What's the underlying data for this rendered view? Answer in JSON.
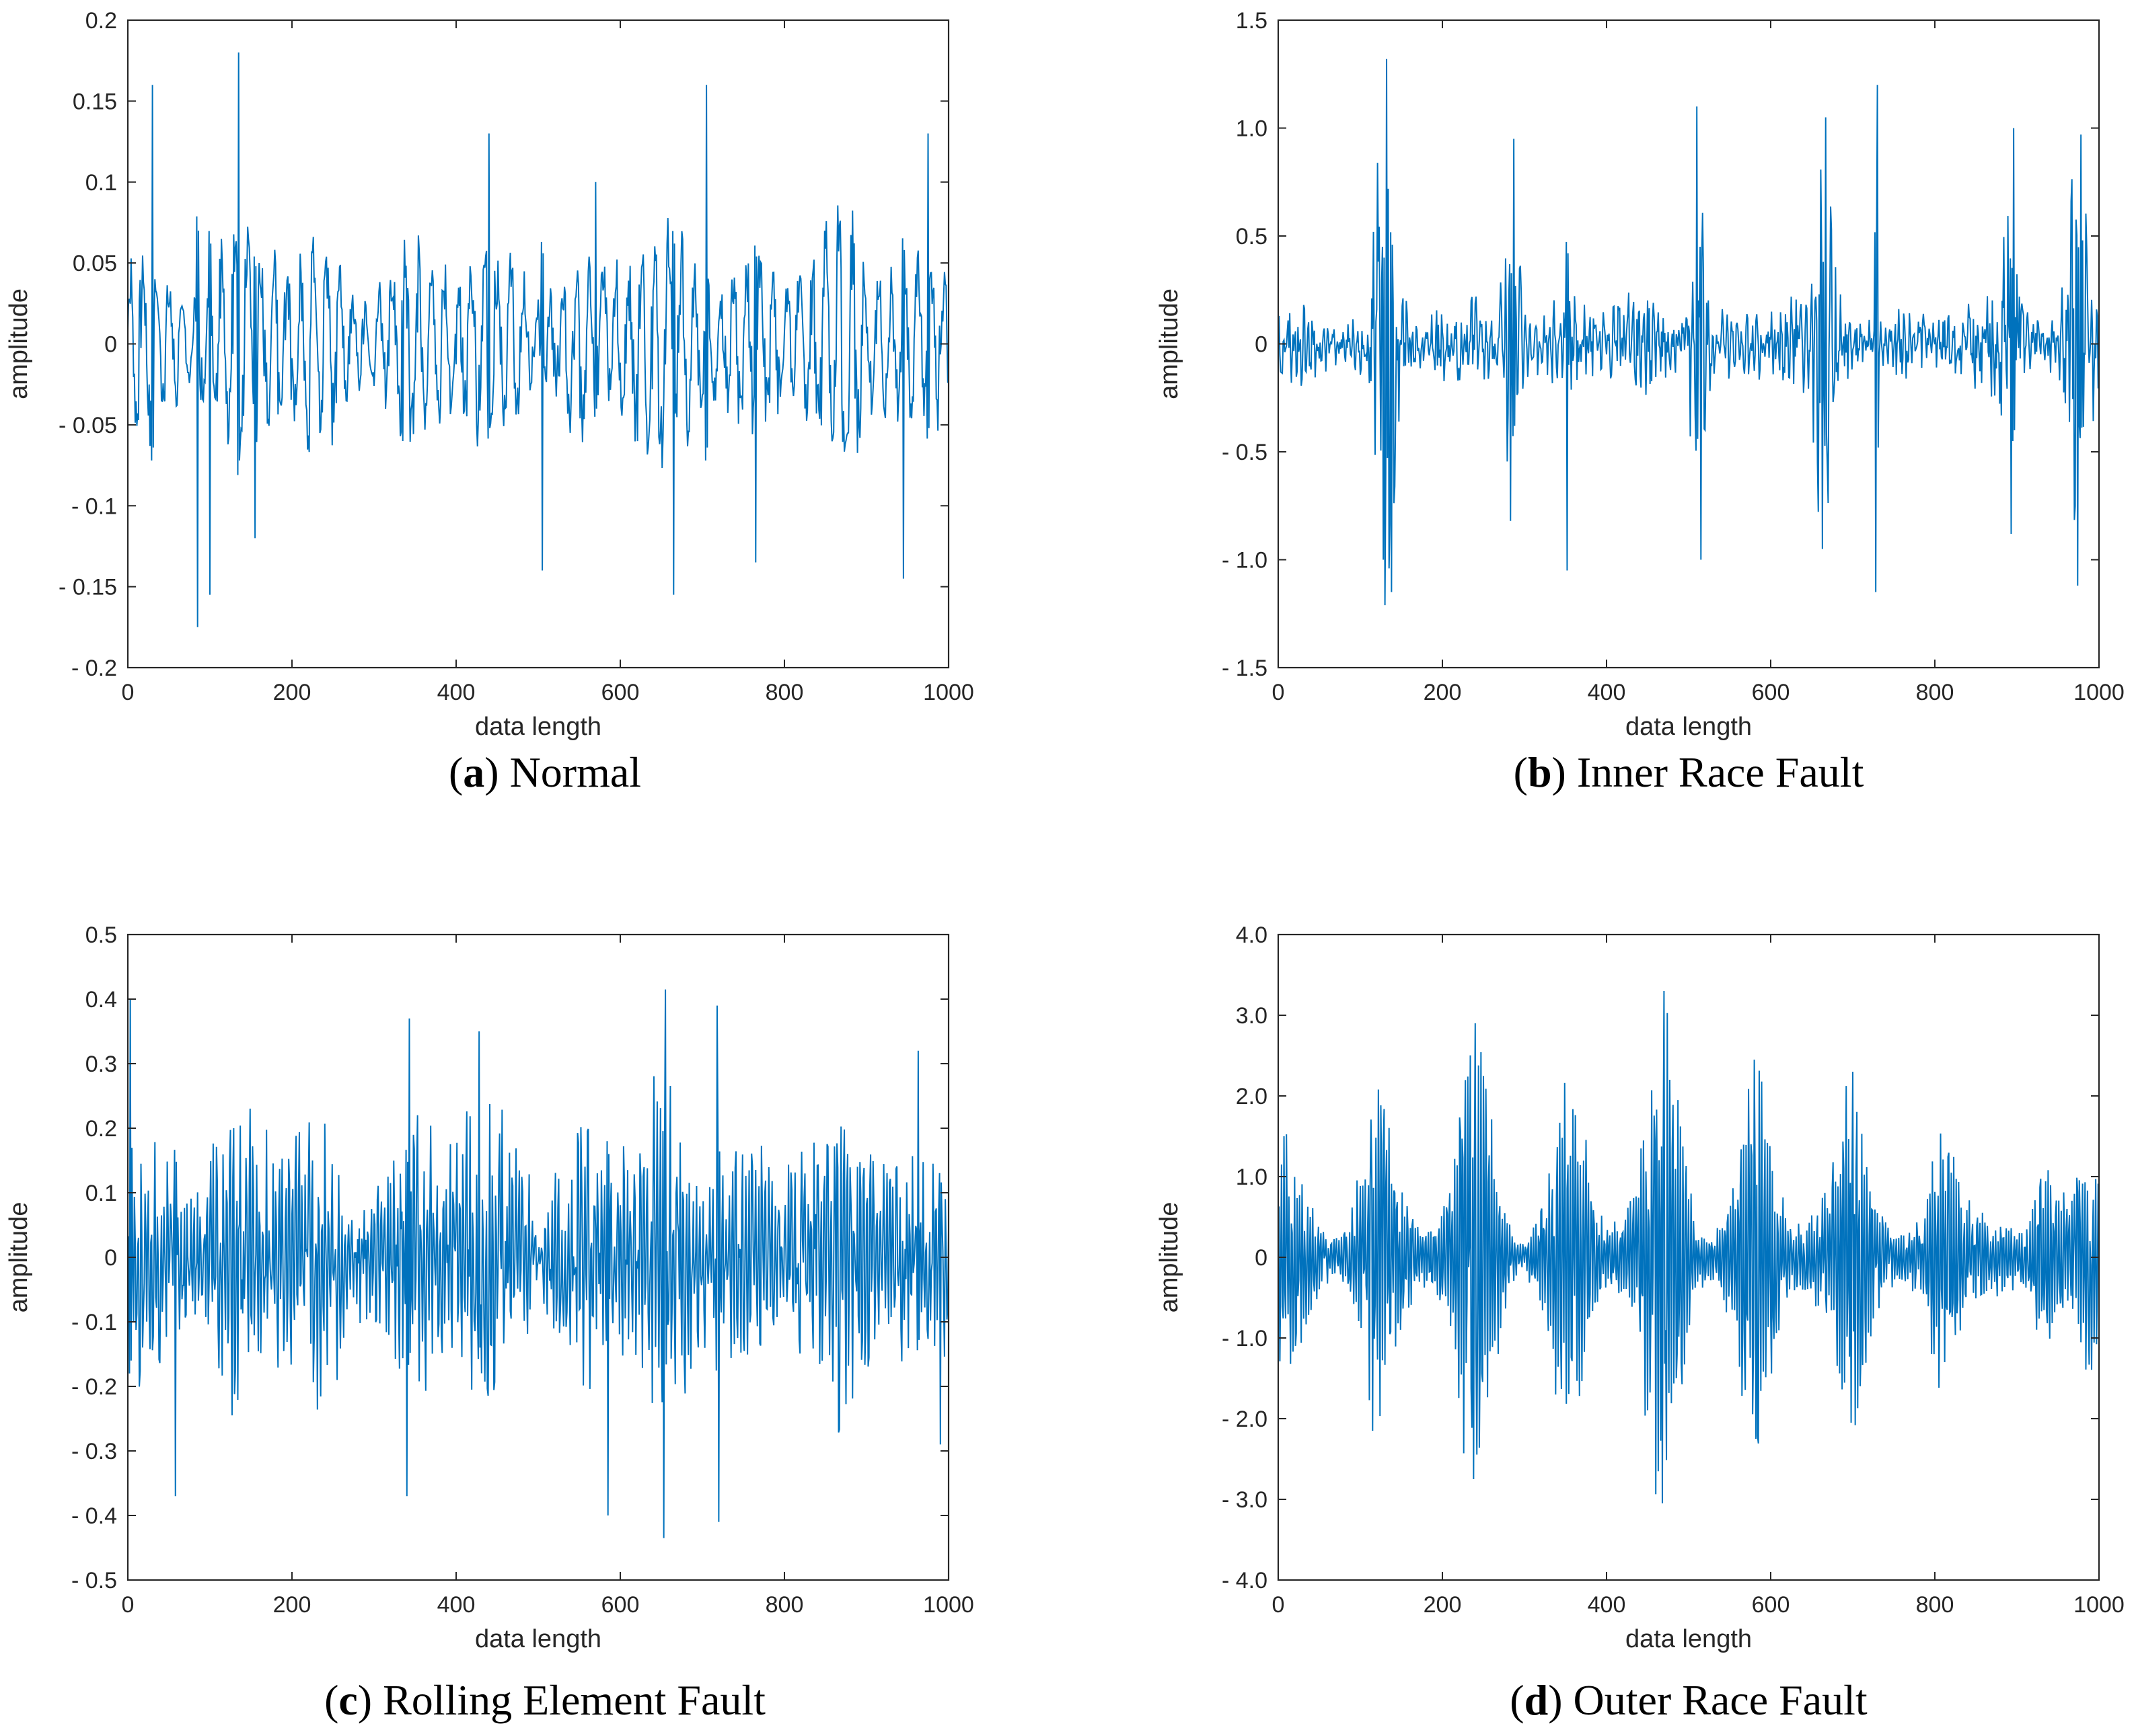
{
  "chart_data": [
    {
      "id": "a",
      "type": "line",
      "caption_letter": "a",
      "caption_text": "Normal",
      "xlabel": "data length",
      "ylabel": "amplitude",
      "xlim": [
        0,
        1000
      ],
      "ylim": [
        -0.2,
        0.2
      ],
      "xticks": [
        0,
        200,
        400,
        600,
        800,
        1000
      ],
      "xtick_labels": [
        "0",
        "200",
        "400",
        "600",
        "800",
        "1000"
      ],
      "yticks": [
        -0.2,
        -0.15,
        -0.1,
        -0.05,
        0,
        0.05,
        0.1,
        0.15,
        0.2
      ],
      "ytick_labels": [
        "- 0.2",
        "- 0.15",
        "- 0.1",
        "- 0.05",
        "0",
        "0.05",
        "0.1",
        "0.15",
        "0.2"
      ],
      "color": "#0072BD",
      "signal": {
        "base_amplitude": 0.055,
        "carrier_period": 16,
        "noise": 0.35,
        "seed": 11,
        "peaks": [
          {
            "x": 30,
            "y": 0.16
          },
          {
            "x": 85,
            "y": -0.175
          },
          {
            "x": 100,
            "y": -0.155
          },
          {
            "x": 135,
            "y": 0.18
          },
          {
            "x": 155,
            "y": -0.12
          },
          {
            "x": 335,
            "y": -0.06
          },
          {
            "x": 440,
            "y": 0.13
          },
          {
            "x": 505,
            "y": -0.14
          },
          {
            "x": 570,
            "y": 0.1
          },
          {
            "x": 665,
            "y": -0.155
          },
          {
            "x": 705,
            "y": 0.16
          },
          {
            "x": 765,
            "y": -0.135
          },
          {
            "x": 945,
            "y": -0.145
          },
          {
            "x": 975,
            "y": 0.13
          }
        ],
        "bursts": []
      }
    },
    {
      "id": "b",
      "type": "line",
      "caption_letter": "b",
      "caption_text": "Inner Race Fault",
      "xlabel": "data length",
      "ylabel": "amplitude",
      "xlim": [
        0,
        1000
      ],
      "ylim": [
        -1.5,
        1.5
      ],
      "xticks": [
        0,
        200,
        400,
        600,
        800,
        1000
      ],
      "xtick_labels": [
        "0",
        "200",
        "400",
        "600",
        "800",
        "1000"
      ],
      "yticks": [
        -1.5,
        -1.0,
        -0.5,
        0,
        0.5,
        1.0,
        1.5
      ],
      "ytick_labels": [
        "- 1.5",
        "- 1.0",
        "- 0.5",
        "0",
        "0.5",
        "1.0",
        "1.5"
      ],
      "color": "#0072BD",
      "signal": {
        "base_amplitude": 0.14,
        "carrier_period": 6,
        "noise": 0.9,
        "seed": 23,
        "peaks": [
          {
            "x": 132,
            "y": 1.32
          },
          {
            "x": 138,
            "y": -1.15
          },
          {
            "x": 128,
            "y": -1.0
          },
          {
            "x": 287,
            "y": 0.95
          },
          {
            "x": 283,
            "y": -0.82
          },
          {
            "x": 352,
            "y": -1.05
          },
          {
            "x": 510,
            "y": 1.1
          },
          {
            "x": 515,
            "y": -1.0
          },
          {
            "x": 667,
            "y": 1.05
          },
          {
            "x": 663,
            "y": -0.95
          },
          {
            "x": 730,
            "y": 1.2
          },
          {
            "x": 728,
            "y": -1.15
          },
          {
            "x": 896,
            "y": 1.0
          },
          {
            "x": 893,
            "y": -0.88
          },
          {
            "x": 978,
            "y": 0.97
          },
          {
            "x": 974,
            "y": -1.12
          }
        ],
        "bursts": [
          {
            "center": 130,
            "width": 14,
            "amp": 0.75
          },
          {
            "center": 285,
            "width": 12,
            "amp": 0.55
          },
          {
            "center": 512,
            "width": 12,
            "amp": 0.6
          },
          {
            "center": 665,
            "width": 12,
            "amp": 0.55
          },
          {
            "center": 895,
            "width": 12,
            "amp": 0.55
          },
          {
            "center": 975,
            "width": 18,
            "amp": 0.6
          }
        ]
      }
    },
    {
      "id": "c",
      "type": "line",
      "caption_letter": "c",
      "caption_text": "Rolling Element Fault",
      "xlabel": "data length",
      "ylabel": "amplitude",
      "xlim": [
        0,
        1000
      ],
      "ylim": [
        -0.5,
        0.5
      ],
      "xticks": [
        0,
        200,
        400,
        600,
        800,
        1000
      ],
      "xtick_labels": [
        "0",
        "200",
        "400",
        "600",
        "800",
        "1000"
      ],
      "yticks": [
        -0.5,
        -0.4,
        -0.3,
        -0.2,
        -0.1,
        0,
        0.1,
        0.2,
        0.3,
        0.4,
        0.5
      ],
      "ytick_labels": [
        "- 0.5",
        "- 0.4",
        "- 0.3",
        "- 0.2",
        "- 0.1",
        "0",
        "0.1",
        "0.2",
        "0.3",
        "0.4",
        "0.5"
      ],
      "color": "#0072BD",
      "signal": {
        "base_amplitude": 0.17,
        "carrier_period": 4,
        "noise": 0.6,
        "seed": 37,
        "peaks": [
          {
            "x": 3,
            "y": 0.4
          },
          {
            "x": 58,
            "y": -0.37
          },
          {
            "x": 343,
            "y": 0.37
          },
          {
            "x": 340,
            "y": -0.37
          },
          {
            "x": 428,
            "y": 0.35
          },
          {
            "x": 655,
            "y": 0.415
          },
          {
            "x": 653,
            "y": -0.435
          },
          {
            "x": 718,
            "y": 0.39
          },
          {
            "x": 720,
            "y": -0.41
          },
          {
            "x": 585,
            "y": -0.4
          },
          {
            "x": 963,
            "y": 0.32
          },
          {
            "x": 990,
            "y": -0.29
          }
        ],
        "bursts": []
      }
    },
    {
      "id": "d",
      "type": "line",
      "caption_letter": "d",
      "caption_text": "Outer Race Fault",
      "xlabel": "data length",
      "ylabel": "amplitude",
      "xlim": [
        0,
        1000
      ],
      "ylim": [
        -4.0,
        4.0
      ],
      "xticks": [
        0,
        200,
        400,
        600,
        800,
        1000
      ],
      "xtick_labels": [
        "0",
        "200",
        "400",
        "600",
        "800",
        "1000"
      ],
      "yticks": [
        -4.0,
        -3.0,
        -2.0,
        -1.0,
        0,
        1.0,
        2.0,
        3.0,
        4.0
      ],
      "ytick_labels": [
        "- 4.0",
        "- 3.0",
        "- 2.0",
        "- 1.0",
        "0",
        "1.0",
        "2.0",
        "3.0",
        "4.0"
      ],
      "color": "#0072BD",
      "signal": {
        "base_amplitude": 0.35,
        "carrier_period": 3.2,
        "noise": 0.25,
        "seed": 53,
        "peaks": [
          {
            "x": 240,
            "y": 2.9
          },
          {
            "x": 238,
            "y": -2.75
          },
          {
            "x": 470,
            "y": 3.3
          },
          {
            "x": 468,
            "y": -3.05
          },
          {
            "x": 580,
            "y": 2.45
          },
          {
            "x": 582,
            "y": -2.25
          },
          {
            "x": 700,
            "y": 2.3
          },
          {
            "x": 698,
            "y": -2.05
          },
          {
            "x": 115,
            "y": -2.15
          }
        ],
        "bursts": [
          {
            "center": 10,
            "width": 35,
            "amp": 1.1
          },
          {
            "center": 120,
            "width": 30,
            "amp": 1.6
          },
          {
            "center": 240,
            "width": 30,
            "amp": 2.4
          },
          {
            "center": 355,
            "width": 30,
            "amp": 1.7
          },
          {
            "center": 470,
            "width": 30,
            "amp": 2.7
          },
          {
            "center": 582,
            "width": 28,
            "amp": 2.0
          },
          {
            "center": 700,
            "width": 28,
            "amp": 1.9
          },
          {
            "center": 812,
            "width": 26,
            "amp": 1.3
          },
          {
            "center": 935,
            "width": 24,
            "amp": 0.85
          },
          {
            "center": 985,
            "width": 22,
            "amp": 1.05
          }
        ]
      }
    }
  ]
}
